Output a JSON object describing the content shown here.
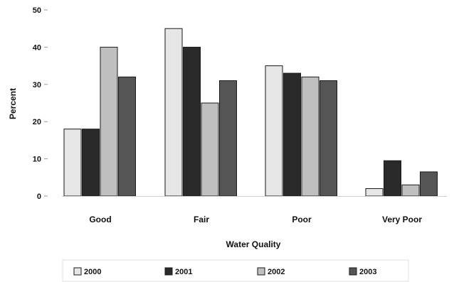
{
  "chart_data": {
    "type": "bar",
    "title": "",
    "xlabel": "Water Quality",
    "ylabel": "Percent",
    "categories": [
      "Good",
      "Fair",
      "Poor",
      "Very Poor"
    ],
    "ylim": [
      0,
      50
    ],
    "yticks": [
      "0",
      "10",
      "20",
      "30",
      "40",
      "50"
    ],
    "grid": false,
    "legend_position": "bottom",
    "series": [
      {
        "name": "2000",
        "color": "#e6e6e6",
        "values": [
          18,
          45,
          35,
          2
        ]
      },
      {
        "name": "2001",
        "color": "#2a2a2a",
        "values": [
          18,
          40,
          33,
          9.5
        ]
      },
      {
        "name": "2002",
        "color": "#bfbfbf",
        "values": [
          40,
          25,
          32,
          3
        ]
      },
      {
        "name": "2003",
        "color": "#555555",
        "values": [
          32,
          31,
          31,
          6.5
        ]
      }
    ]
  }
}
